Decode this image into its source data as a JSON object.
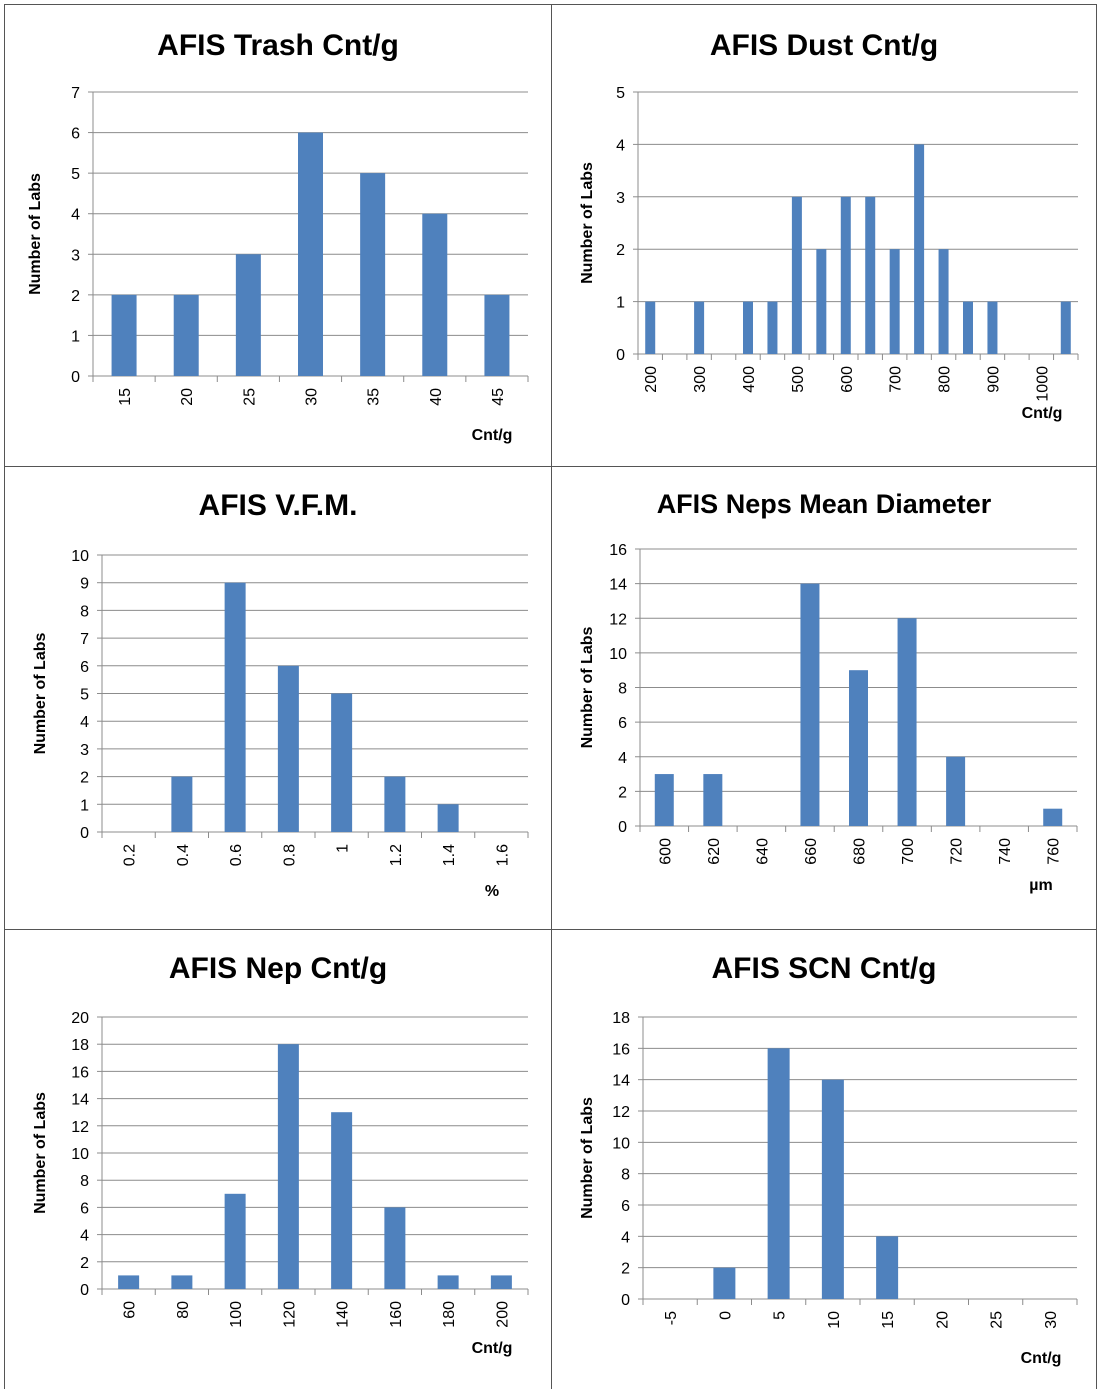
{
  "colors": {
    "bar": "#4f81bd",
    "grid": "#8c8c8c",
    "axis": "#8c8c8c",
    "text": "#000000"
  },
  "chart_data": [
    {
      "id": "trash",
      "type": "bar",
      "title": "AFIS Trash Cnt/g",
      "xlabel": "Cnt/g",
      "ylabel": "Number of Labs",
      "categories": [
        "15",
        "20",
        "25",
        "30",
        "35",
        "40",
        "45"
      ],
      "values": [
        2,
        2,
        3,
        6,
        5,
        4,
        2
      ],
      "ylim": [
        0,
        7
      ],
      "ystep": 1,
      "grid": true,
      "legend": "none"
    },
    {
      "id": "dust",
      "type": "bar",
      "title": "AFIS Dust Cnt/g",
      "xlabel": "Cnt/g",
      "ylabel": "Number of Labs",
      "categories": [
        "200",
        "250",
        "300",
        "350",
        "400",
        "450",
        "500",
        "550",
        "600",
        "650",
        "700",
        "750",
        "800",
        "850",
        "900",
        "950",
        "1000",
        "1050"
      ],
      "tick_labels": [
        "200",
        "300",
        "400",
        "500",
        "600",
        "700",
        "800",
        "900",
        "1000"
      ],
      "values": [
        1,
        0,
        1,
        0,
        1,
        1,
        3,
        2,
        3,
        3,
        2,
        4,
        2,
        1,
        1,
        0,
        0,
        1
      ],
      "ylim": [
        0,
        5
      ],
      "ystep": 1,
      "grid": true,
      "legend": "none"
    },
    {
      "id": "vfm",
      "type": "bar",
      "title": "AFIS V.F.M.",
      "xlabel": "%",
      "ylabel": "Number of Labs",
      "categories": [
        "0.2",
        "0.4",
        "0.6",
        "0.8",
        "1",
        "1.2",
        "1.4",
        "1.6"
      ],
      "values": [
        0,
        2,
        9,
        6,
        5,
        2,
        1,
        0
      ],
      "ylim": [
        0,
        10
      ],
      "ystep": 1,
      "grid": true,
      "legend": "none"
    },
    {
      "id": "nepsdiam",
      "type": "bar",
      "title": "AFIS Neps Mean Diameter",
      "xlabel": "µm",
      "ylabel": "Number of Labs",
      "categories": [
        "600",
        "620",
        "640",
        "660",
        "680",
        "700",
        "720",
        "740",
        "760"
      ],
      "values": [
        3,
        3,
        0,
        14,
        9,
        12,
        4,
        0,
        1
      ],
      "ylim": [
        0,
        16
      ],
      "ystep": 2,
      "grid": true,
      "legend": "none"
    },
    {
      "id": "nepcnt",
      "type": "bar",
      "title": "AFIS Nep Cnt/g",
      "xlabel": "Cnt/g",
      "ylabel": "Number of Labs",
      "categories": [
        "60",
        "80",
        "100",
        "120",
        "140",
        "160",
        "180",
        "200"
      ],
      "values": [
        1,
        1,
        7,
        18,
        13,
        6,
        1,
        1
      ],
      "ylim": [
        0,
        20
      ],
      "ystep": 2,
      "grid": true,
      "legend": "none"
    },
    {
      "id": "scn",
      "type": "bar",
      "title": "AFIS SCN Cnt/g",
      "xlabel": "Cnt/g",
      "ylabel": "Number of Labs",
      "categories": [
        "-5",
        "0",
        "5",
        "10",
        "15",
        "20",
        "25",
        "30"
      ],
      "values": [
        0,
        2,
        16,
        14,
        4,
        0,
        0,
        0
      ],
      "ylim": [
        0,
        18
      ],
      "ystep": 2,
      "grid": true,
      "legend": "none"
    }
  ]
}
